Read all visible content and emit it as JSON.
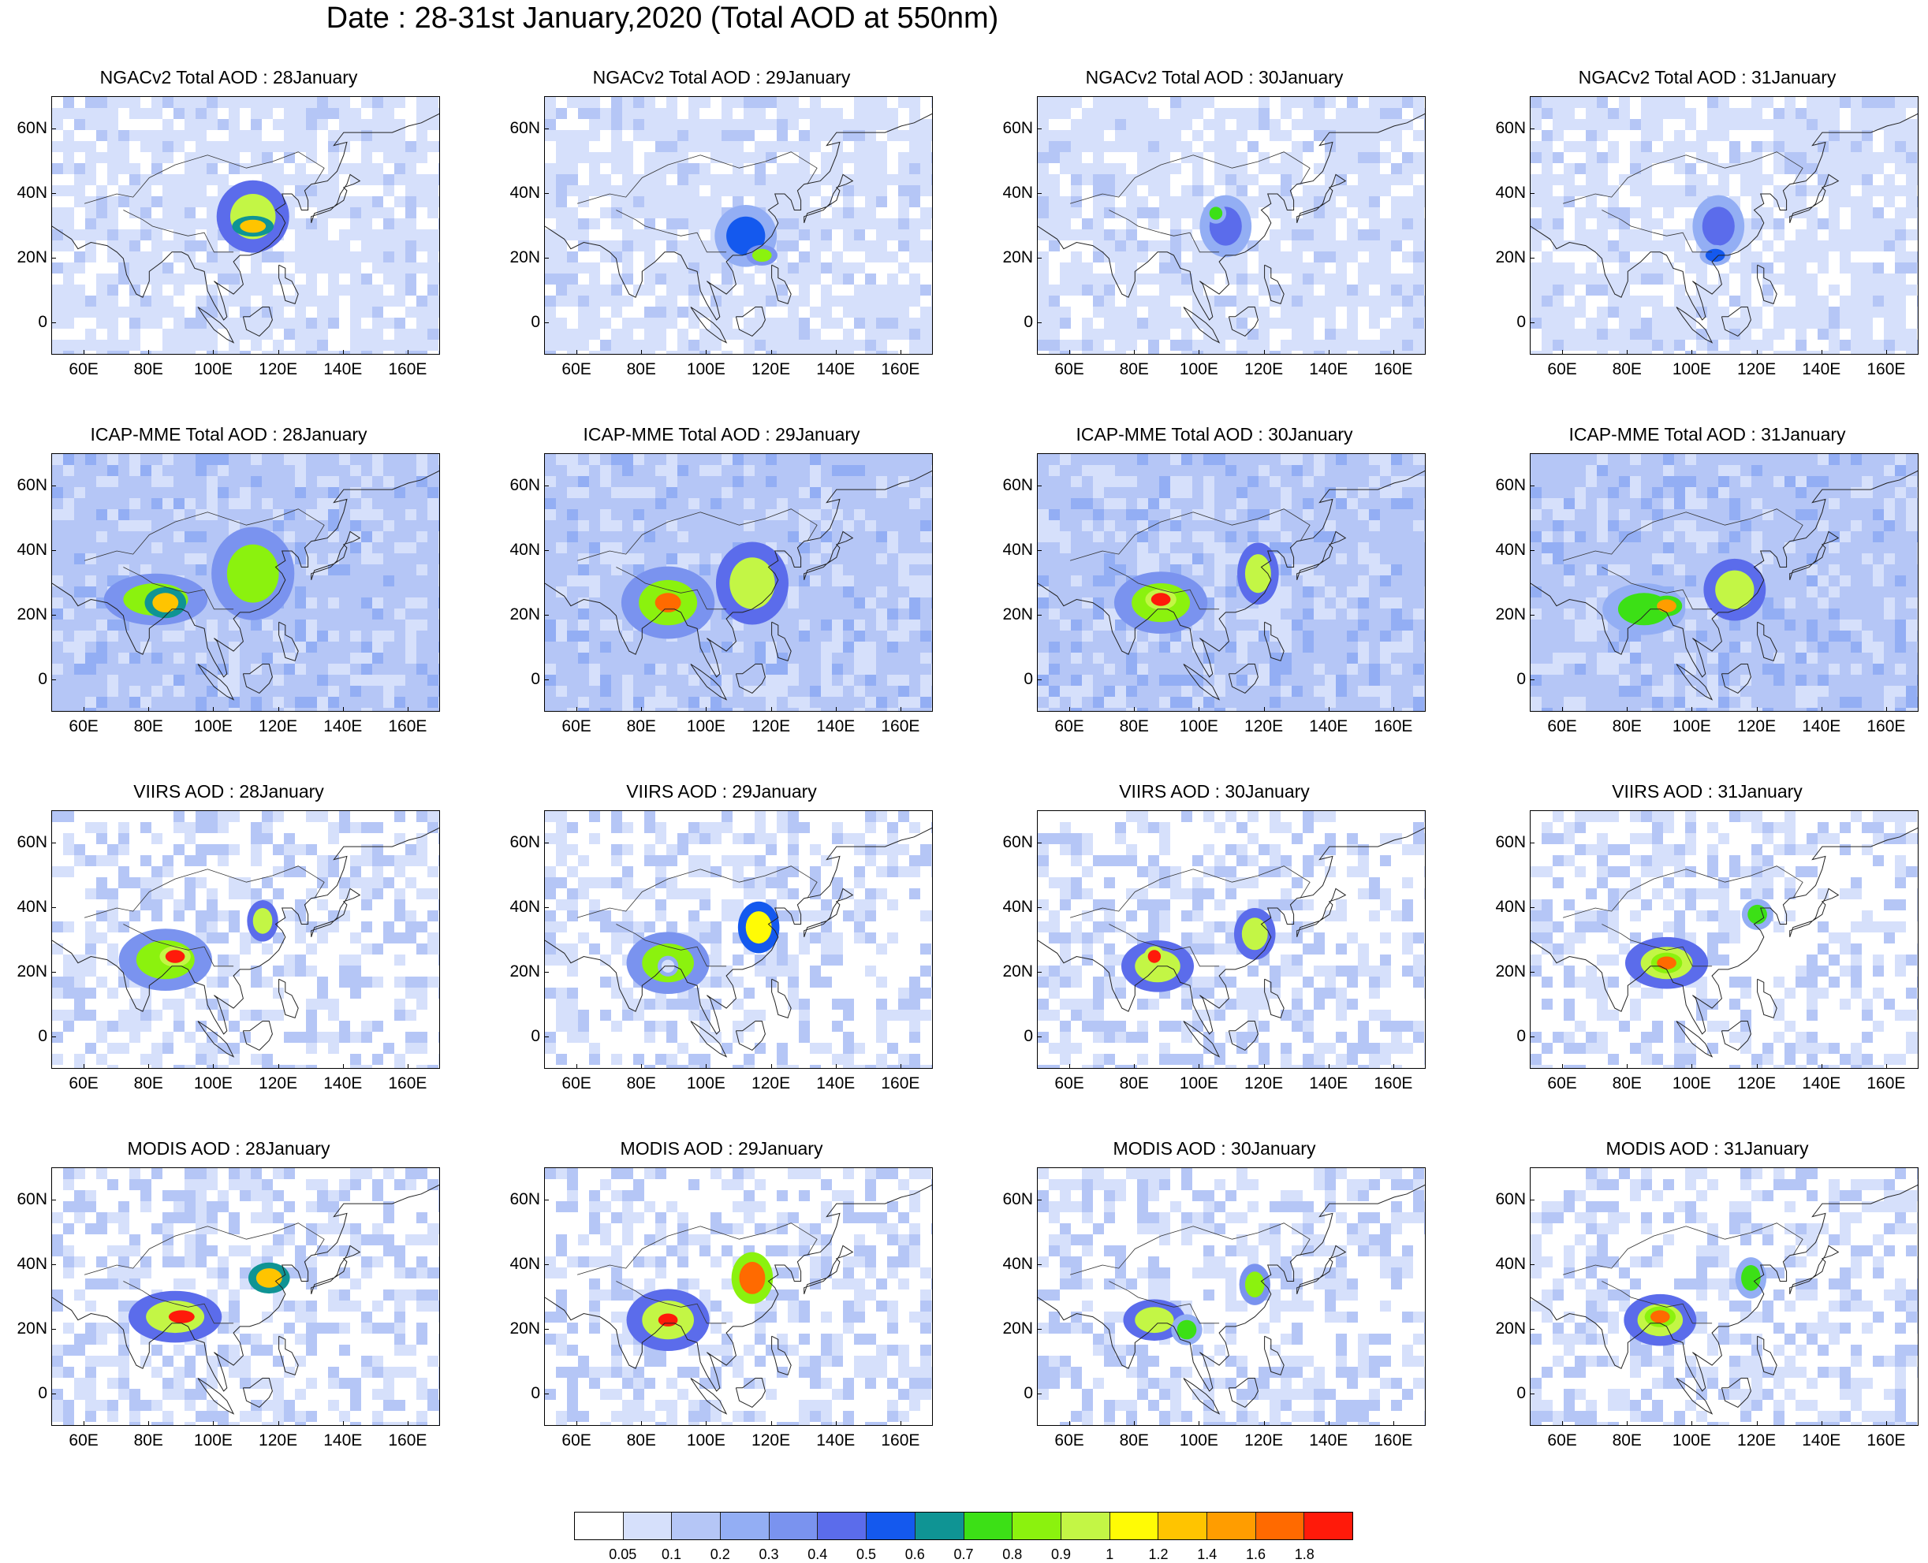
{
  "title": "Date : 28-31st January,2020 (Total AOD at 550nm)",
  "lat_labels": [
    "60N",
    "40N",
    "20N",
    "0"
  ],
  "lat_values": [
    60,
    40,
    20,
    0
  ],
  "lon_labels": [
    "60E",
    "80E",
    "100E",
    "120E",
    "140E",
    "160E"
  ],
  "lon_values": [
    60,
    80,
    100,
    120,
    140,
    160
  ],
  "map_extent": {
    "lon_min": 50,
    "lon_max": 170,
    "lat_min": -10,
    "lat_max": 70
  },
  "rows": [
    {
      "id": "ngac",
      "panels": [
        "NGACv2 Total AOD : 28January",
        "NGACv2 Total AOD : 29January",
        "NGACv2 Total AOD : 30January",
        "NGACv2 Total AOD : 31January"
      ]
    },
    {
      "id": "icap",
      "panels": [
        "ICAP-MME Total AOD : 28January",
        "ICAP-MME Total AOD : 29January",
        "ICAP-MME Total AOD : 30January",
        "ICAP-MME Total AOD : 31January"
      ]
    },
    {
      "id": "viirs",
      "panels": [
        "VIIRS AOD : 28January",
        "VIIRS AOD : 29January",
        "VIIRS AOD : 30January",
        "VIIRS AOD : 31January"
      ]
    },
    {
      "id": "modis",
      "panels": [
        "MODIS AOD : 28January",
        "MODIS AOD : 29January",
        "MODIS AOD : 30January",
        "MODIS AOD : 31January"
      ]
    }
  ],
  "colorbar": {
    "colors": [
      "#ffffff",
      "#d6e0fb",
      "#b5c6f6",
      "#93aef4",
      "#7a93ef",
      "#5b6ceb",
      "#1459ee",
      "#0f9494",
      "#3ce016",
      "#8bf20e",
      "#c3f645",
      "#fffb05",
      "#ffc400",
      "#ff9d00",
      "#ff6a00",
      "#ff1a0a"
    ],
    "labels": [
      "0.05",
      "0.1",
      "0.2",
      "0.3",
      "0.4",
      "0.5",
      "0.6",
      "0.7",
      "0.8",
      "0.9",
      "1",
      "1.2",
      "1.4",
      "1.6",
      "1.8"
    ]
  }
}
